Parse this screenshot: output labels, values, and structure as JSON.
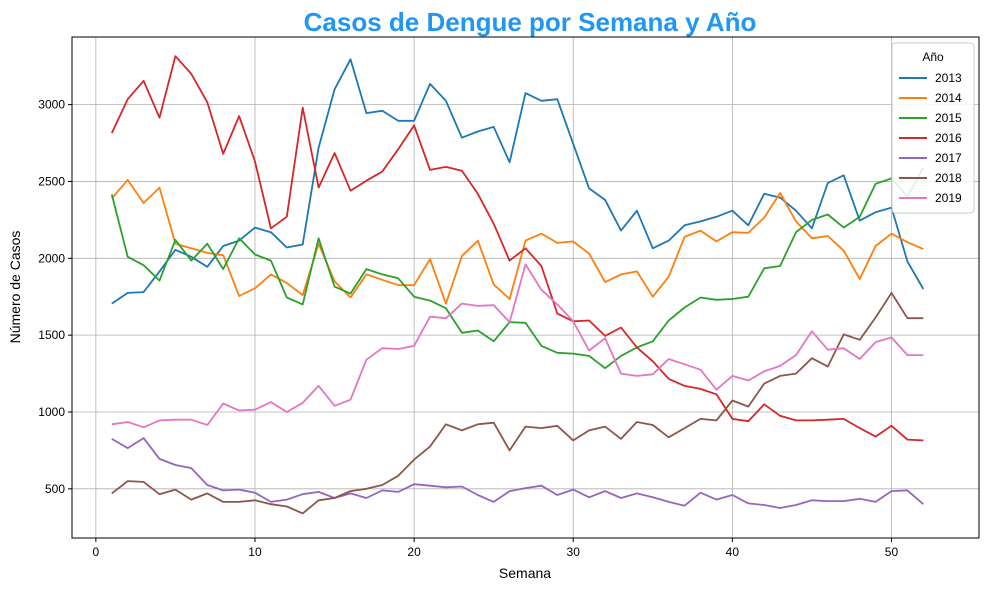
{
  "chart_data": {
    "type": "line",
    "title": "Casos de Dengue por Semana y Año",
    "title_color": "#2196F3",
    "xlabel": "Semana",
    "ylabel": "Número de Casos",
    "xlim": [
      -1.5,
      55.5
    ],
    "ylim": [
      180,
      3440
    ],
    "x_ticks": [
      0,
      10,
      20,
      30,
      40,
      50
    ],
    "y_ticks": [
      500,
      1000,
      1500,
      2000,
      2500,
      3000
    ],
    "grid": true,
    "legend_title": "Año",
    "legend_position": "top-right",
    "x": [
      1,
      2,
      3,
      4,
      5,
      6,
      7,
      8,
      9,
      10,
      11,
      12,
      13,
      14,
      15,
      16,
      17,
      18,
      19,
      20,
      21,
      22,
      23,
      24,
      25,
      26,
      27,
      28,
      29,
      30,
      31,
      32,
      33,
      34,
      35,
      36,
      37,
      38,
      39,
      40,
      41,
      42,
      43,
      44,
      45,
      46,
      47,
      48,
      49,
      50,
      51,
      52
    ],
    "series": [
      {
        "name": "2013",
        "color": "#1f77b4",
        "values": [
          1705,
          1775,
          1780,
          1915,
          2055,
          2010,
          1945,
          2080,
          2115,
          2200,
          2170,
          2070,
          2090,
          2720,
          3100,
          3295,
          2945,
          2960,
          2895,
          2895,
          3135,
          3025,
          2785,
          2825,
          2855,
          2625,
          3075,
          3025,
          3035,
          2745,
          2455,
          2380,
          2180,
          2310,
          2065,
          2115,
          2215,
          2240,
          2270,
          2310,
          2215,
          2420,
          2395,
          2310,
          2195,
          2490,
          2540,
          2245,
          2300,
          2330,
          1980,
          1800
        ]
      },
      {
        "name": "2014",
        "color": "#ff7f0e",
        "values": [
          2390,
          2510,
          2360,
          2460,
          2095,
          2065,
          2035,
          2020,
          1755,
          1805,
          1895,
          1840,
          1760,
          2095,
          1850,
          1745,
          1895,
          1860,
          1825,
          1825,
          1995,
          1705,
          2015,
          2115,
          1830,
          1735,
          2115,
          2160,
          2100,
          2110,
          2030,
          1845,
          1895,
          1915,
          1750,
          1880,
          2140,
          2180,
          2110,
          2170,
          2165,
          2265,
          2425,
          2240,
          2130,
          2145,
          2050,
          1865,
          2080,
          2160,
          2105,
          2060
        ]
      },
      {
        "name": "2015",
        "color": "#2ca02c",
        "values": [
          2415,
          2010,
          1955,
          1855,
          2120,
          1985,
          2095,
          1930,
          2130,
          2025,
          1985,
          1745,
          1700,
          2130,
          1815,
          1770,
          1930,
          1895,
          1870,
          1750,
          1725,
          1675,
          1515,
          1530,
          1460,
          1585,
          1580,
          1430,
          1385,
          1380,
          1365,
          1285,
          1365,
          1420,
          1460,
          1595,
          1680,
          1745,
          1730,
          1735,
          1750,
          1935,
          1950,
          2170,
          2250,
          2285,
          2200,
          2270,
          2485,
          2520,
          2400,
          2590
        ]
      },
      {
        "name": "2016",
        "color": "#d62728",
        "values": [
          2815,
          3035,
          3155,
          2915,
          3315,
          3200,
          3015,
          2680,
          2925,
          2630,
          2195,
          2270,
          2980,
          2460,
          2685,
          2440,
          2505,
          2565,
          2710,
          2865,
          2575,
          2595,
          2570,
          2420,
          2225,
          1985,
          2065,
          1950,
          1640,
          1590,
          1595,
          1495,
          1550,
          1420,
          1330,
          1215,
          1170,
          1150,
          1115,
          955,
          940,
          1050,
          975,
          945,
          945,
          950,
          955,
          895,
          840,
          910,
          820,
          815
        ]
      },
      {
        "name": "2017",
        "color": "#9467bd",
        "values": [
          825,
          765,
          830,
          695,
          655,
          635,
          525,
          490,
          495,
          475,
          415,
          430,
          465,
          480,
          440,
          470,
          440,
          490,
          480,
          530,
          520,
          510,
          515,
          460,
          415,
          485,
          505,
          520,
          460,
          495,
          445,
          485,
          440,
          470,
          445,
          415,
          390,
          475,
          430,
          460,
          405,
          395,
          375,
          395,
          425,
          420,
          420,
          435,
          415,
          485,
          490,
          400
        ]
      },
      {
        "name": "2018",
        "color": "#8c564b",
        "values": [
          470,
          550,
          545,
          465,
          495,
          430,
          470,
          415,
          415,
          425,
          400,
          385,
          340,
          425,
          440,
          485,
          500,
          525,
          585,
          690,
          775,
          920,
          880,
          920,
          930,
          750,
          905,
          895,
          910,
          815,
          880,
          905,
          825,
          935,
          915,
          835,
          895,
          955,
          945,
          1075,
          1035,
          1185,
          1235,
          1250,
          1350,
          1295,
          1505,
          1470,
          1615,
          1775,
          1610,
          1610
        ]
      },
      {
        "name": "2019",
        "color": "#e377c2",
        "values": [
          920,
          935,
          900,
          945,
          950,
          950,
          915,
          1055,
          1010,
          1015,
          1065,
          1000,
          1060,
          1170,
          1040,
          1080,
          1340,
          1415,
          1410,
          1430,
          1620,
          1610,
          1705,
          1690,
          1695,
          1585,
          1960,
          1795,
          1700,
          1590,
          1400,
          1480,
          1250,
          1235,
          1245,
          1345,
          1310,
          1275,
          1145,
          1235,
          1205,
          1265,
          1300,
          1370,
          1525,
          1405,
          1415,
          1345,
          1455,
          1485,
          1370,
          1370
        ]
      }
    ]
  }
}
